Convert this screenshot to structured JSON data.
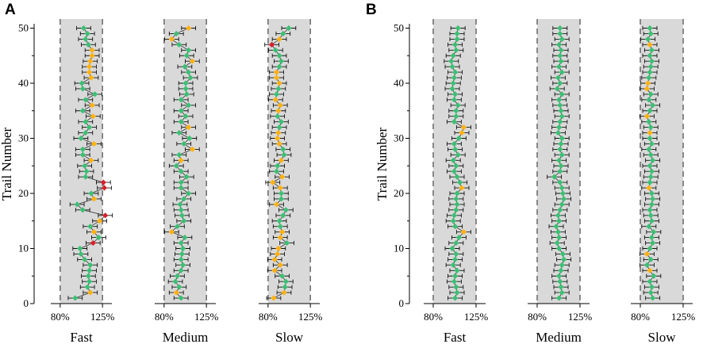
{
  "chart_data": [
    {
      "type": "scatter",
      "panel": "A",
      "ylabel": "Trail Number",
      "y_ticks": [
        "0",
        "10",
        "20",
        "30",
        "40",
        "50"
      ],
      "ylim": [
        0,
        52
      ],
      "x_ticks": [
        "80%",
        "125%"
      ],
      "x_range_percent": [
        70,
        135
      ],
      "band_percent": [
        80,
        125
      ],
      "categories": [
        "Fast",
        "Medium",
        "Slow"
      ],
      "series": [
        {
          "condition": "Fast",
          "x": [
            96,
            112,
            109,
            111,
            110,
            111,
            112,
            106,
            102,
            101,
            115,
            121,
            116,
            112,
            122,
            128,
            104,
            98,
            116,
            113,
            127,
            126,
            107,
            108,
            106,
            113,
            104,
            104,
            116,
            102,
            107,
            111,
            107,
            115,
            104,
            114,
            107,
            117,
            104,
            103,
            113,
            111,
            111,
            112,
            114,
            114,
            110,
            107,
            109,
            105
          ],
          "color_code": [
            "g",
            "o",
            "g",
            "g",
            "g",
            "g",
            "g",
            "g",
            "g",
            "g",
            "r",
            "g",
            "o",
            "g",
            "o",
            "r",
            "g",
            "g",
            "o",
            "g",
            "r",
            "r",
            "g",
            "g",
            "g",
            "o",
            "g",
            "g",
            "o",
            "g",
            "g",
            "g",
            "g",
            "o",
            "g",
            "o",
            "g",
            "g",
            "g",
            "g",
            "o",
            "o",
            "o",
            "o",
            "o",
            "o",
            "g",
            "g",
            "g",
            "g"
          ]
        },
        {
          "condition": "Medium",
          "x": [
            98,
            93,
            96,
            92,
            94,
            98,
            100,
            98,
            99,
            100,
            98,
            102,
            88,
            94,
            101,
            99,
            98,
            97,
            101,
            106,
            98,
            98,
            104,
            98,
            93,
            98,
            96,
            110,
            101,
            107,
            96,
            106,
            98,
            103,
            98,
            106,
            98,
            104,
            103,
            103,
            108,
            106,
            102,
            110,
            104,
            106,
            96,
            88,
            93,
            106
          ],
          "color_code": [
            "g",
            "o",
            "g",
            "g",
            "g",
            "g",
            "g",
            "g",
            "g",
            "g",
            "g",
            "g",
            "o",
            "g",
            "g",
            "g",
            "g",
            "g",
            "g",
            "g",
            "g",
            "g",
            "g",
            "g",
            "g",
            "o",
            "g",
            "o",
            "g",
            "g",
            "g",
            "o",
            "g",
            "g",
            "g",
            "g",
            "g",
            "g",
            "g",
            "g",
            "g",
            "g",
            "g",
            "o",
            "g",
            "g",
            "g",
            "o",
            "g",
            "o"
          ]
        },
        {
          "condition": "Slow",
          "x": [
            86,
            97,
            98,
            99,
            95,
            87,
            93,
            87,
            90,
            91,
            100,
            93,
            95,
            93,
            92,
            96,
            99,
            89,
            94,
            94,
            93,
            85,
            95,
            89,
            90,
            94,
            97,
            96,
            92,
            90,
            91,
            92,
            94,
            90,
            91,
            93,
            88,
            89,
            91,
            92,
            89,
            89,
            92,
            94,
            92,
            88,
            84,
            92,
            96,
            102
          ],
          "color_code": [
            "o",
            "o",
            "g",
            "g",
            "g",
            "o",
            "o",
            "o",
            "o",
            "o",
            "g",
            "o",
            "o",
            "g",
            "g",
            "g",
            "g",
            "o",
            "g",
            "g",
            "o",
            "o",
            "o",
            "g",
            "g",
            "o",
            "g",
            "g",
            "o",
            "o",
            "o",
            "g",
            "g",
            "g",
            "o",
            "o",
            "o",
            "g",
            "g",
            "o",
            "o",
            "o",
            "g",
            "g",
            "g",
            "g",
            "r",
            "o",
            "g",
            "g"
          ]
        }
      ]
    },
    {
      "type": "scatter",
      "panel": "B",
      "ylabel": "Trail Number",
      "y_ticks": [
        "0",
        "10",
        "20",
        "30",
        "40",
        "50"
      ],
      "ylim": [
        0,
        52
      ],
      "x_ticks": [
        "80%",
        "125%"
      ],
      "x_range_percent": [
        70,
        135
      ],
      "band_percent": [
        80,
        125
      ],
      "categories": [
        "Fast",
        "Medium",
        "Slow"
      ],
      "series": [
        {
          "condition": "Fast",
          "x": [
            103,
            105,
            104,
            102,
            103,
            105,
            101,
            103,
            104,
            100,
            104,
            107,
            112,
            103,
            101,
            102,
            104,
            105,
            104,
            105,
            110,
            108,
            105,
            102,
            104,
            101,
            106,
            103,
            102,
            107,
            110,
            112,
            102,
            104,
            104,
            106,
            102,
            103,
            100,
            101,
            102,
            103,
            100,
            99,
            101,
            104,
            103,
            105,
            105,
            106
          ],
          "color_code": [
            "g",
            "g",
            "g",
            "g",
            "g",
            "g",
            "g",
            "g",
            "g",
            "g",
            "g",
            "g",
            "o",
            "g",
            "g",
            "g",
            "g",
            "g",
            "g",
            "g",
            "o",
            "g",
            "g",
            "g",
            "g",
            "g",
            "g",
            "g",
            "g",
            "g",
            "o",
            "o",
            "g",
            "g",
            "g",
            "g",
            "g",
            "g",
            "g",
            "g",
            "g",
            "g",
            "g",
            "g",
            "g",
            "g",
            "g",
            "g",
            "g",
            "g"
          ]
        },
        {
          "condition": "Medium",
          "x": [
            103,
            106,
            105,
            104,
            103,
            105,
            106,
            108,
            107,
            103,
            101,
            103,
            102,
            100,
            103,
            102,
            104,
            106,
            108,
            107,
            106,
            104,
            98,
            104,
            105,
            103,
            106,
            104,
            105,
            106,
            102,
            103,
            104,
            106,
            105,
            104,
            103,
            106,
            101,
            104,
            102,
            106,
            103,
            105,
            104,
            105,
            103,
            106,
            104,
            104
          ],
          "color_code": [
            "g",
            "g",
            "g",
            "g",
            "g",
            "g",
            "g",
            "g",
            "g",
            "g",
            "g",
            "g",
            "g",
            "g",
            "g",
            "g",
            "g",
            "g",
            "g",
            "g",
            "g",
            "g",
            "g",
            "g",
            "g",
            "g",
            "g",
            "g",
            "g",
            "g",
            "g",
            "g",
            "g",
            "g",
            "g",
            "g",
            "g",
            "g",
            "g",
            "g",
            "g",
            "g",
            "g",
            "g",
            "g",
            "g",
            "g",
            "g",
            "g",
            "g"
          ]
        },
        {
          "condition": "Slow",
          "x": [
            93,
            91,
            92,
            90,
            94,
            90,
            87,
            91,
            87,
            90,
            93,
            92,
            94,
            89,
            92,
            91,
            90,
            92,
            93,
            92,
            89,
            90,
            91,
            92,
            90,
            93,
            91,
            89,
            92,
            90,
            90,
            91,
            89,
            87,
            90,
            93,
            89,
            91,
            87,
            88,
            89,
            90,
            91,
            92,
            90,
            92,
            90,
            88,
            91,
            90
          ],
          "color_code": [
            "g",
            "g",
            "g",
            "g",
            "g",
            "o",
            "g",
            "g",
            "o",
            "g",
            "g",
            "g",
            "g",
            "g",
            "g",
            "g",
            "g",
            "g",
            "g",
            "g",
            "o",
            "g",
            "g",
            "g",
            "g",
            "g",
            "g",
            "g",
            "g",
            "g",
            "o",
            "g",
            "g",
            "o",
            "g",
            "g",
            "g",
            "g",
            "o",
            "o",
            "g",
            "g",
            "g",
            "g",
            "g",
            "g",
            "o",
            "g",
            "g",
            "g"
          ]
        }
      ]
    }
  ],
  "error_halfwidth_percent": 7.5,
  "colors": {
    "green": "#3cbf74",
    "orange": "#ffb20f",
    "red": "#d7202b",
    "band": "#d9d9d9",
    "guide": "#707070",
    "axis": "#000000"
  }
}
